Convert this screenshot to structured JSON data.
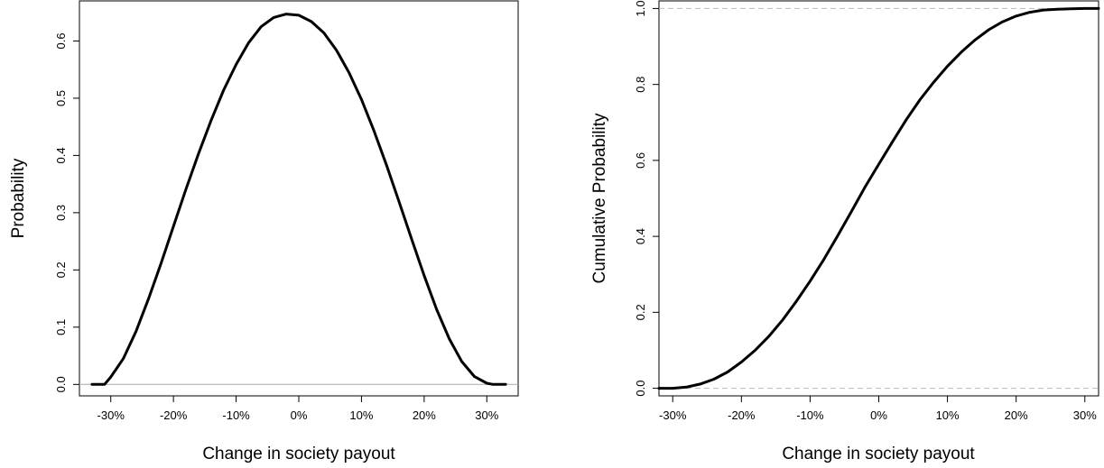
{
  "chart_data": [
    {
      "type": "line",
      "xlabel": "Change in society payout",
      "ylabel": "Probability",
      "xlim": [
        -35,
        35
      ],
      "ylim": [
        -0.02,
        0.67
      ],
      "x_ticks": [
        -30,
        -20,
        -10,
        0,
        10,
        20,
        30
      ],
      "x_tick_labels": [
        "-30%",
        "-20%",
        "-10%",
        "0%",
        "10%",
        "20%",
        "30%"
      ],
      "y_ticks": [
        0.0,
        0.1,
        0.2,
        0.3,
        0.4,
        0.5,
        0.6
      ],
      "y_tick_labels": [
        "0.0",
        "0.1",
        "0.2",
        "0.3",
        "0.4",
        "0.5",
        "0.6"
      ],
      "reference_lines": [
        {
          "y": 0,
          "style": "solid",
          "color": "#aaaaaa"
        }
      ],
      "grid": false,
      "series": [
        {
          "color": "#000000",
          "x": [
            -33,
            -31,
            -30,
            -28,
            -26,
            -24,
            -22,
            -20,
            -18,
            -16,
            -14,
            -12,
            -10,
            -8,
            -6,
            -4,
            -2,
            0,
            2,
            4,
            6,
            8,
            10,
            12,
            14,
            16,
            18,
            20,
            22,
            24,
            26,
            28,
            30,
            31,
            33
          ],
          "y": [
            0.0,
            0.0,
            0.013,
            0.045,
            0.092,
            0.149,
            0.211,
            0.276,
            0.341,
            0.403,
            0.461,
            0.514,
            0.559,
            0.597,
            0.625,
            0.641,
            0.647,
            0.645,
            0.634,
            0.614,
            0.584,
            0.545,
            0.498,
            0.443,
            0.383,
            0.319,
            0.254,
            0.19,
            0.131,
            0.08,
            0.04,
            0.014,
            0.002,
            0.0,
            0.0
          ]
        }
      ]
    },
    {
      "type": "line",
      "xlabel": "Change in society payout",
      "ylabel": "Cumulative Probability",
      "xlim": [
        -32,
        32
      ],
      "ylim": [
        -0.02,
        1.02
      ],
      "x_ticks": [
        -30,
        -20,
        -10,
        0,
        10,
        20,
        30
      ],
      "x_tick_labels": [
        "-30%",
        "-20%",
        "-10%",
        "0%",
        "10%",
        "20%",
        "30%"
      ],
      "y_ticks": [
        0.0,
        0.2,
        0.4,
        0.6,
        0.8,
        1.0
      ],
      "y_tick_labels": [
        "0.0",
        "0.2",
        "0.4",
        "0.6",
        "0.8",
        "1.0"
      ],
      "reference_lines": [
        {
          "y": 0,
          "style": "dashed",
          "color": "#bbbbbb"
        },
        {
          "y": 1,
          "style": "dashed",
          "color": "#bbbbbb"
        }
      ],
      "grid": false,
      "series": [
        {
          "color": "#000000",
          "x": [
            -32,
            -30,
            -28,
            -26,
            -24,
            -22,
            -20,
            -18,
            -16,
            -14,
            -12,
            -10,
            -8,
            -6,
            -4,
            -2,
            0,
            2,
            4,
            6,
            8,
            10,
            12,
            14,
            16,
            18,
            20,
            22,
            24,
            26,
            28,
            30,
            32
          ],
          "y": [
            0.0,
            0.0,
            0.003,
            0.011,
            0.024,
            0.043,
            0.069,
            0.1,
            0.137,
            0.18,
            0.229,
            0.282,
            0.339,
            0.401,
            0.465,
            0.53,
            0.59,
            0.649,
            0.707,
            0.76,
            0.806,
            0.848,
            0.885,
            0.917,
            0.944,
            0.965,
            0.98,
            0.99,
            0.996,
            0.998,
            0.999,
            1.0,
            1.0
          ]
        }
      ]
    }
  ]
}
